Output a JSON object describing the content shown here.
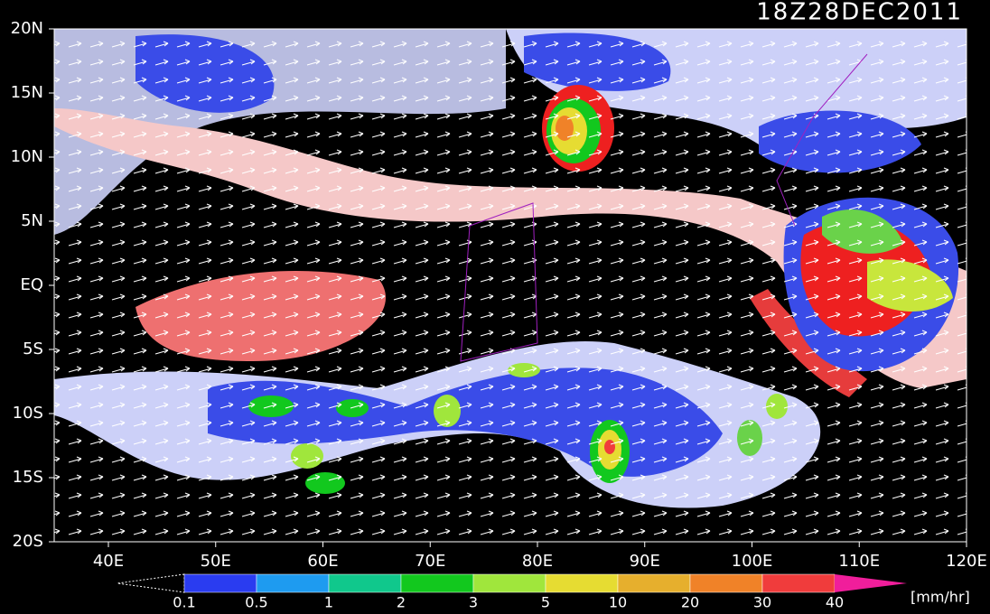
{
  "title": "18Z28DEC2011",
  "map": {
    "lat_labels": [
      "20N",
      "15N",
      "10N",
      "5N",
      "EQ",
      "5S",
      "10S",
      "15S",
      "20S"
    ],
    "lon_labels": [
      "40E",
      "50E",
      "60E",
      "70E",
      "80E",
      "90E",
      "100E",
      "110E",
      "120E"
    ]
  },
  "colorbar": {
    "levels": [
      0.1,
      0.5,
      1,
      2,
      3,
      5,
      10,
      20,
      30,
      40
    ],
    "colors": [
      "#2a3cf0",
      "#1e9bf0",
      "#10c88c",
      "#12c81e",
      "#a0e63c",
      "#e6dc32",
      "#e6af2d",
      "#f08228",
      "#f03c3c",
      "#f01e9b"
    ],
    "unit": "[mm/hr]"
  }
}
